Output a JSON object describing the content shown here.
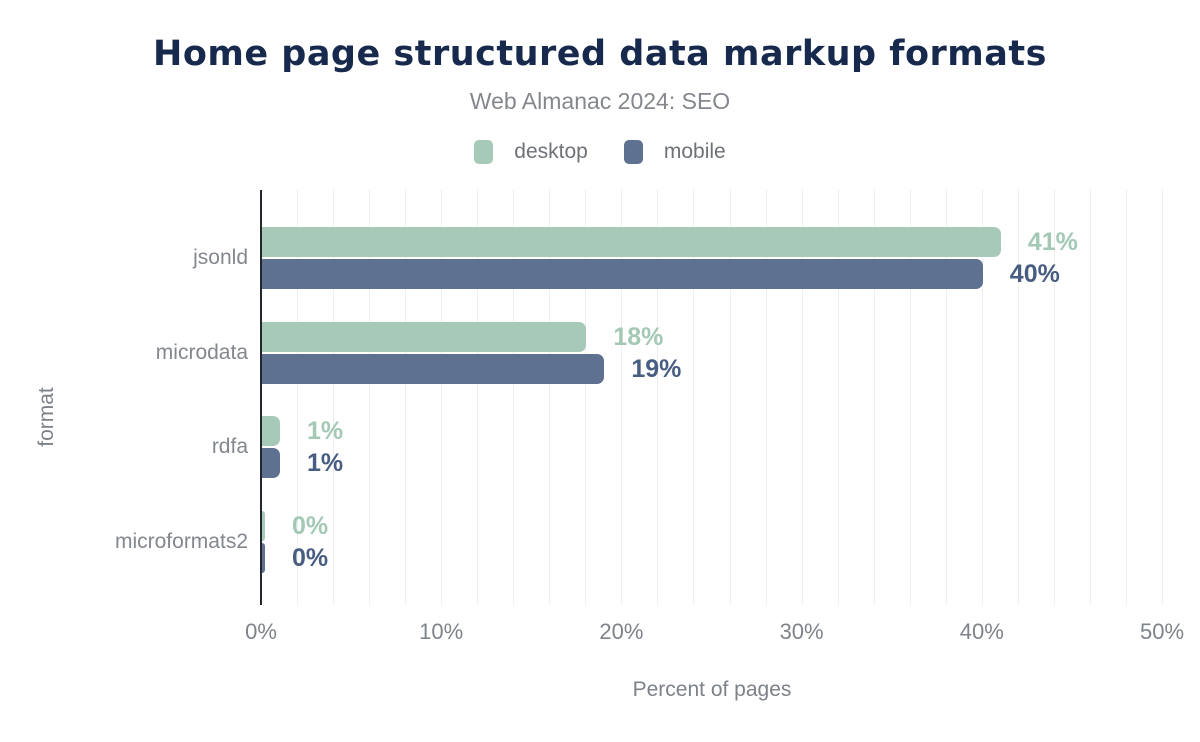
{
  "chart_data": {
    "type": "bar",
    "orientation": "horizontal",
    "title": "Home page structured data markup formats",
    "subtitle": "Web Almanac 2024: SEO",
    "categories": [
      "jsonld",
      "microdata",
      "rdfa",
      "microformats2"
    ],
    "series": [
      {
        "name": "desktop",
        "color": "#a7c9b8",
        "label_color": "#a3c8b4",
        "values": [
          41,
          18,
          1,
          0
        ],
        "labels": [
          "41%",
          "18%",
          "1%",
          "0%"
        ]
      },
      {
        "name": "mobile",
        "color": "#5e7190",
        "label_color": "#475d81",
        "values": [
          40,
          19,
          1,
          0
        ],
        "labels": [
          "40%",
          "19%",
          "1%",
          "0%"
        ]
      }
    ],
    "xlabel": "Percent of pages",
    "ylabel": "format",
    "xlim": [
      0,
      50
    ],
    "x_ticks": [
      0,
      10,
      20,
      30,
      40,
      50
    ],
    "x_tick_labels": [
      "0%",
      "10%",
      "20%",
      "30%",
      "40%",
      "50%"
    ],
    "grid_step": 2,
    "grid": true,
    "legend_position": "top",
    "value_suffix": "%"
  },
  "colors": {
    "title": "#172a4d",
    "axis_line": "#23262c",
    "gridline": "#efefef",
    "background": "#ffffff"
  }
}
